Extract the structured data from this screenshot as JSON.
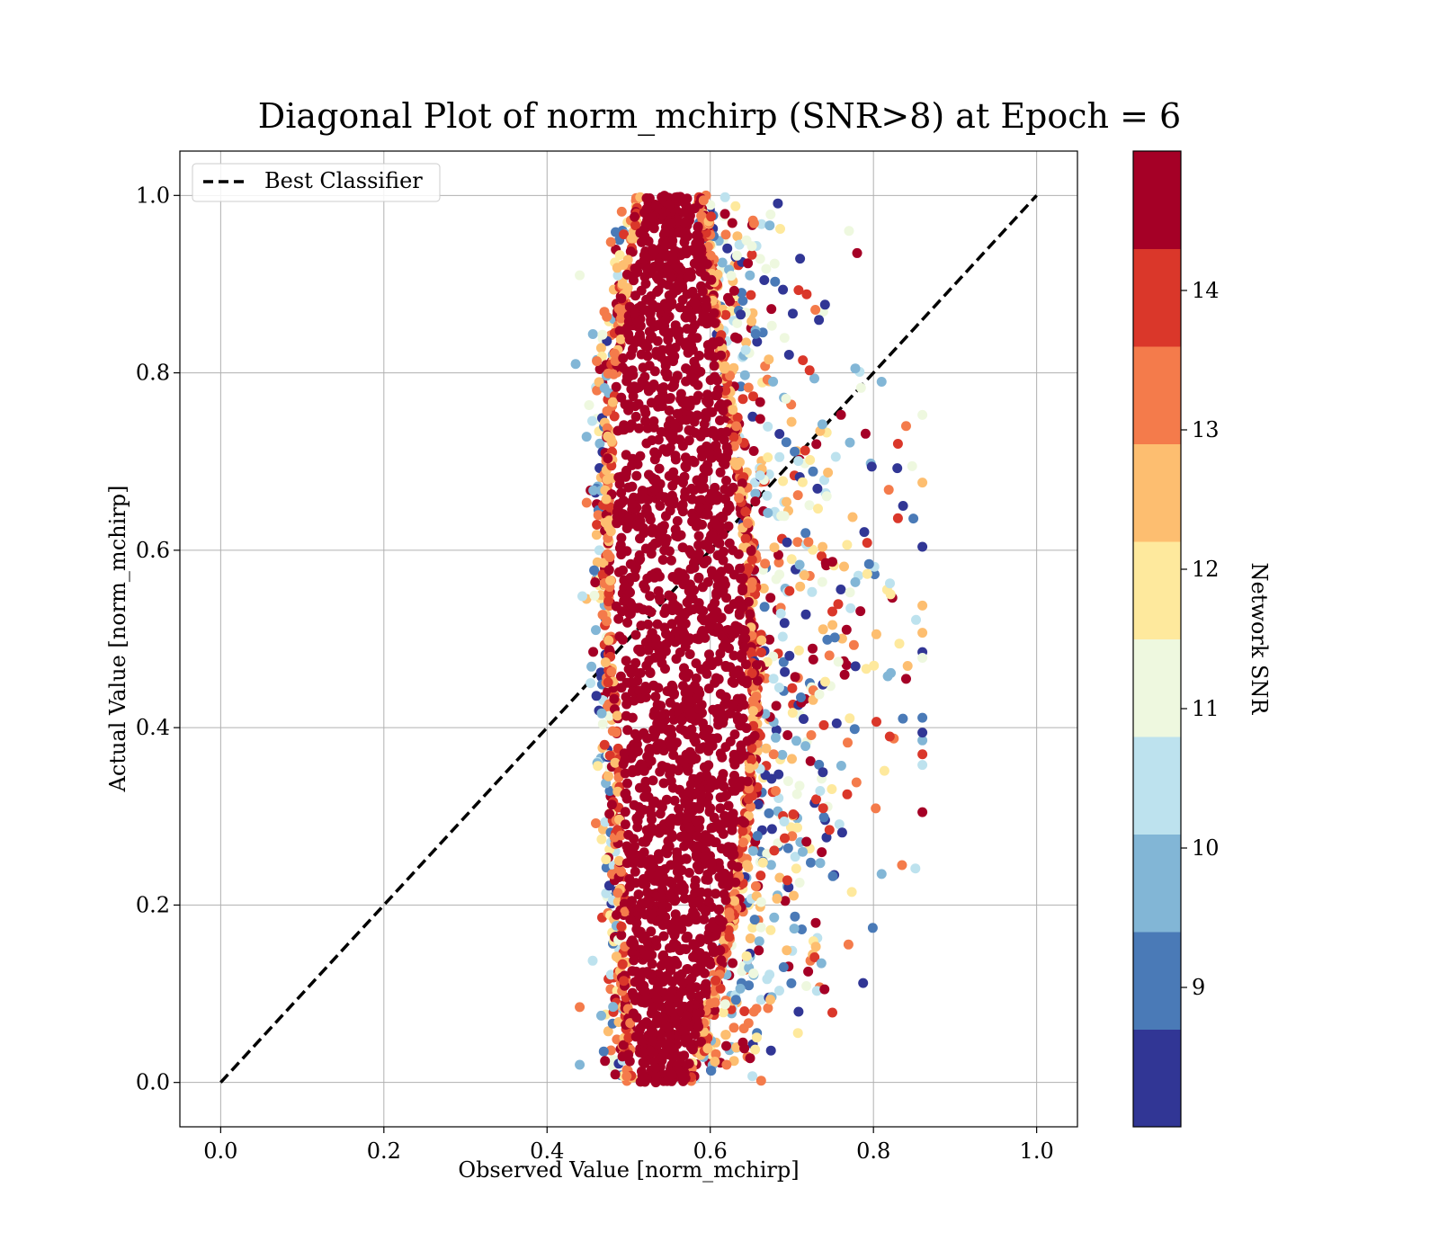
{
  "chart_data": {
    "type": "scatter",
    "title": "Diagonal Plot of norm_mchirp (SNR>8) at Epoch = 6",
    "xlabel": "Observed Value [norm_mchirp]",
    "ylabel": "Actual Value [norm_mchirp]",
    "xlim": [
      -0.05,
      1.05
    ],
    "ylim": [
      -0.05,
      1.05
    ],
    "xticks": [
      "0.0",
      "0.2",
      "0.4",
      "0.6",
      "0.8",
      "1.0"
    ],
    "yticks": [
      "0.0",
      "0.2",
      "0.4",
      "0.6",
      "0.8",
      "1.0"
    ],
    "grid": true,
    "legend": {
      "placement": "upper-left",
      "entries": [
        {
          "label": "Best Classifier",
          "style": "dashed",
          "color": "#000000"
        }
      ]
    },
    "reference_line": {
      "x": [
        0.0,
        1.0
      ],
      "y": [
        0.0,
        1.0
      ],
      "style": "dashed",
      "color": "#000000"
    },
    "colorbar": {
      "label": "Network SNR",
      "range": [
        8,
        15
      ],
      "ticks": [
        "9",
        "10",
        "11",
        "12",
        "13",
        "14"
      ],
      "bins": [
        {
          "from": 8.0,
          "to": 8.7,
          "color": "#313695"
        },
        {
          "from": 8.7,
          "to": 9.4,
          "color": "#4a7ab7"
        },
        {
          "from": 9.4,
          "to": 10.1,
          "color": "#82b6d6"
        },
        {
          "from": 10.1,
          "to": 10.8,
          "color": "#bde2ee"
        },
        {
          "from": 10.8,
          "to": 11.5,
          "color": "#eef8df"
        },
        {
          "from": 11.5,
          "to": 12.2,
          "color": "#fee99d"
        },
        {
          "from": 12.2,
          "to": 12.9,
          "color": "#fdbe70"
        },
        {
          "from": 12.9,
          "to": 13.6,
          "color": "#f47b4b"
        },
        {
          "from": 13.6,
          "to": 14.3,
          "color": "#da372a"
        },
        {
          "from": 14.3,
          "to": 15.0,
          "color": "#a50026"
        }
      ]
    },
    "scatter_distribution": {
      "dense_core": {
        "x_range": [
          0.47,
          0.67
        ],
        "y_range": [
          0.0,
          1.0
        ],
        "dominant_snr": 15
      },
      "x_center_by_y": [
        [
          0.0,
          0.54
        ],
        [
          0.2,
          0.56
        ],
        [
          0.4,
          0.57
        ],
        [
          0.6,
          0.56
        ],
        [
          0.8,
          0.55
        ],
        [
          1.0,
          0.55
        ]
      ],
      "halo_x_range": [
        0.44,
        0.86
      ],
      "outliers": [
        {
          "x": 0.86,
          "y": 0.37,
          "snr": 14
        },
        {
          "x": 0.84,
          "y": 0.74,
          "snr": 13
        },
        {
          "x": 0.84,
          "y": 0.455,
          "snr": 15
        },
        {
          "x": 0.78,
          "y": 0.935,
          "snr": 15
        },
        {
          "x": 0.77,
          "y": 0.96,
          "snr": 11
        },
        {
          "x": 0.83,
          "y": 0.72,
          "snr": 14
        },
        {
          "x": 0.81,
          "y": 0.79,
          "snr": 10
        },
        {
          "x": 0.82,
          "y": 0.39,
          "snr": 14
        },
        {
          "x": 0.835,
          "y": 0.245,
          "snr": 13
        },
        {
          "x": 0.81,
          "y": 0.235,
          "snr": 10
        },
        {
          "x": 0.72,
          "y": 0.125,
          "snr": 15
        },
        {
          "x": 0.74,
          "y": 0.105,
          "snr": 15
        },
        {
          "x": 0.64,
          "y": 0.045,
          "snr": 15
        },
        {
          "x": 0.62,
          "y": 0.02,
          "snr": 13
        },
        {
          "x": 0.44,
          "y": 0.085,
          "snr": 13
        },
        {
          "x": 0.44,
          "y": 0.02,
          "snr": 10
        },
        {
          "x": 0.435,
          "y": 0.81,
          "snr": 10
        },
        {
          "x": 0.44,
          "y": 0.91,
          "snr": 11
        }
      ]
    }
  }
}
